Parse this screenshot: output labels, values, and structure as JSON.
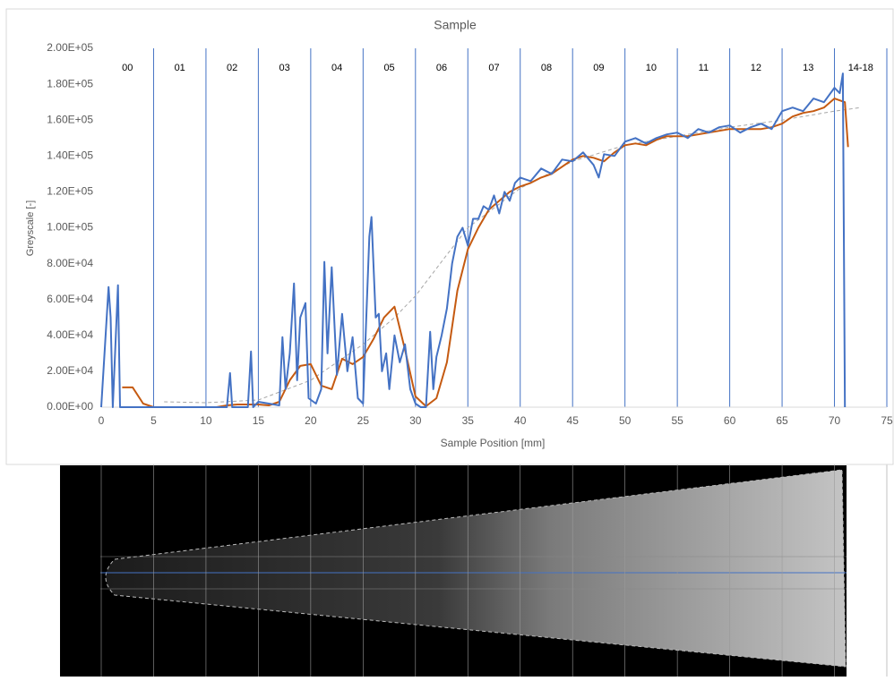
{
  "chart_data": {
    "type": "line",
    "title": "Sample",
    "xlabel": "Sample Position [mm]",
    "ylabel": "Greyscale [-]",
    "xlim": [
      0,
      75
    ],
    "xticks": [
      0,
      5,
      10,
      15,
      20,
      25,
      30,
      35,
      40,
      45,
      50,
      55,
      60,
      65,
      70,
      75
    ],
    "ylim": [
      0,
      200000
    ],
    "yticks": [
      {
        "value": 0,
        "label": "0.00E+00"
      },
      {
        "value": 20000,
        "label": "2.00E+04"
      },
      {
        "value": 40000,
        "label": "4.00E+04"
      },
      {
        "value": 60000,
        "label": "6.00E+04"
      },
      {
        "value": 80000,
        "label": "8.00E+04"
      },
      {
        "value": 100000,
        "label": "1.00E+05"
      },
      {
        "value": 120000,
        "label": "1.20E+05"
      },
      {
        "value": 140000,
        "label": "1.40E+05"
      },
      {
        "value": 160000,
        "label": "1.60E+05"
      },
      {
        "value": 180000,
        "label": "1.80E+05"
      },
      {
        "value": 200000,
        "label": "2.00E+05"
      }
    ],
    "section_bounds": [
      0,
      5,
      10,
      15,
      20,
      25,
      30,
      35,
      40,
      45,
      50,
      55,
      60,
      65,
      70,
      75
    ],
    "sections": [
      "00",
      "01",
      "02",
      "03",
      "04",
      "05",
      "06",
      "07",
      "08",
      "09",
      "10",
      "11",
      "12",
      "13",
      "14-18"
    ],
    "series": [
      {
        "color": "#4472c4",
        "x": [
          0,
          0.7,
          0.9,
          1.1,
          1.6,
          1.8,
          5,
          10,
          12,
          12.3,
          12.5,
          14,
          14.3,
          14.5,
          15,
          16,
          17,
          17.3,
          17.6,
          18,
          18.4,
          18.7,
          19,
          19.5,
          19.8,
          20.5,
          21,
          21.3,
          21.6,
          22,
          22.5,
          23,
          23.5,
          24,
          24.5,
          25,
          25.6,
          25.8,
          26.2,
          26.5,
          26.8,
          27.2,
          27.5,
          28,
          28.5,
          29,
          29.5,
          30,
          30.5,
          31,
          31.4,
          31.7,
          32,
          32.5,
          33,
          33.5,
          34,
          34.5,
          35,
          35.5,
          36,
          36.5,
          37,
          37.5,
          38,
          38.5,
          39,
          39.5,
          40,
          41,
          42,
          43,
          44,
          45,
          46,
          47,
          47.5,
          48,
          49,
          50,
          51,
          52,
          53,
          54,
          55,
          56,
          57,
          58,
          59,
          60,
          61,
          62,
          63,
          64,
          65,
          66,
          67,
          68,
          69,
          70,
          70.5,
          70.8,
          71
        ],
        "values": [
          0,
          67000,
          50000,
          0,
          68000,
          0,
          0,
          0,
          0,
          19000,
          0,
          0,
          31000,
          0,
          3000,
          2000,
          1000,
          39000,
          10000,
          30000,
          69000,
          15000,
          50000,
          58000,
          5000,
          2000,
          10000,
          81000,
          30000,
          78000,
          18000,
          52000,
          20000,
          39000,
          5000,
          2000,
          95000,
          106000,
          50000,
          52000,
          20000,
          30000,
          10000,
          40000,
          25000,
          35000,
          10000,
          2000,
          0,
          0,
          42000,
          10000,
          28000,
          40000,
          55000,
          80000,
          95000,
          100000,
          90000,
          105000,
          105000,
          112000,
          110000,
          118000,
          108000,
          120000,
          115000,
          125000,
          128000,
          126000,
          133000,
          130000,
          138000,
          137000,
          142000,
          135000,
          128000,
          141000,
          140000,
          148000,
          150000,
          147000,
          150000,
          152000,
          153000,
          150000,
          155000,
          153000,
          156000,
          157000,
          153000,
          156000,
          158000,
          155000,
          165000,
          167000,
          165000,
          172000,
          170000,
          178000,
          175000,
          186000,
          0
        ]
      },
      {
        "color": "#c55a11",
        "x": [
          2,
          3,
          4,
          5,
          6,
          7,
          8,
          9,
          10,
          11,
          12,
          13,
          14,
          15,
          16,
          17,
          18,
          19,
          20,
          21,
          22,
          23,
          24,
          25,
          26,
          27,
          28,
          29,
          30,
          31,
          32,
          33,
          34,
          35,
          36,
          37,
          38,
          39,
          40,
          41,
          42,
          43,
          44,
          45,
          46,
          47,
          48,
          49,
          50,
          51,
          52,
          53,
          54,
          55,
          56,
          57,
          58,
          59,
          60,
          61,
          62,
          63,
          64,
          65,
          66,
          67,
          68,
          69,
          70,
          71,
          71.3
        ],
        "values": [
          11000,
          11000,
          2000,
          0,
          0,
          0,
          0,
          0,
          0,
          0,
          1000,
          1500,
          1500,
          1500,
          1000,
          3000,
          15000,
          23000,
          24000,
          12000,
          10000,
          27000,
          24000,
          28000,
          38000,
          50000,
          56000,
          32000,
          6000,
          500,
          5000,
          25000,
          65000,
          88000,
          100000,
          110000,
          115000,
          120000,
          123000,
          125000,
          128000,
          130000,
          134000,
          138000,
          140000,
          139000,
          137000,
          142000,
          146000,
          147000,
          146000,
          149000,
          151000,
          151000,
          151000,
          152000,
          153000,
          154000,
          155000,
          155000,
          155000,
          155000,
          156000,
          158000,
          162000,
          164000,
          165000,
          167000,
          172000,
          170000,
          145000
        ]
      },
      {
        "color": "#a6a6a6",
        "dash": true,
        "x": [
          6,
          10,
          15,
          20,
          25,
          28,
          30,
          33,
          35,
          40,
          45,
          50,
          55,
          60,
          65,
          70,
          72.5
        ],
        "values": [
          3000,
          2500,
          4000,
          15000,
          35000,
          50000,
          62000,
          85000,
          100000,
          122000,
          137000,
          146000,
          151000,
          156000,
          160000,
          165000,
          167000
        ]
      }
    ]
  }
}
